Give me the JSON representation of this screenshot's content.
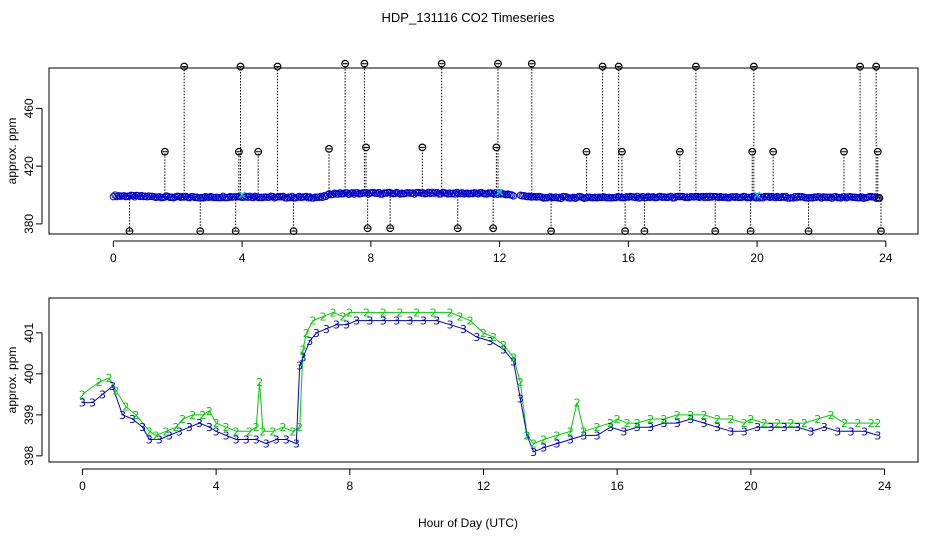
{
  "figure": {
    "title": "HDP_131116  CO2 Timeseries",
    "xlabel": "Hour of Day (UTC)"
  },
  "chart_data": [
    {
      "type": "scatter",
      "name": "top-panel",
      "title": "HDP_131116  CO2 Timeseries",
      "xlabel": "",
      "ylabel": "approx. ppm",
      "xlim": [
        -2.0,
        25.0
      ],
      "ylim": [
        373,
        488
      ],
      "xticks": [
        0,
        4,
        8,
        12,
        16,
        20,
        24
      ],
      "yticks": [
        380,
        420,
        460
      ],
      "colors": {
        "baseline": "#0000cc",
        "outlier": "#000000",
        "marker": "#00cccc"
      },
      "baseline": {
        "name": "baseline",
        "x": [
          0.0,
          1.0,
          2.0,
          3.0,
          4.0,
          5.0,
          6.0,
          6.5,
          6.8,
          8.0,
          10.0,
          12.0,
          12.6,
          13.3,
          13.5,
          16.0,
          20.0,
          23.8
        ],
        "y": [
          399.5,
          399.0,
          398.5,
          398.5,
          399.0,
          398.5,
          398.5,
          398.5,
          401.0,
          401.2,
          401.3,
          401.0,
          399.5,
          398.5,
          398.2,
          398.5,
          398.5,
          398.3
        ]
      },
      "outliers": {
        "name": "outliers",
        "x": [
          0.5,
          1.6,
          2.2,
          2.7,
          3.8,
          3.9,
          3.95,
          4.5,
          5.1,
          5.6,
          6.7,
          7.2,
          7.8,
          7.85,
          7.9,
          8.6,
          9.6,
          10.2,
          10.7,
          11.8,
          11.9,
          11.95,
          13.0,
          13.6,
          14.7,
          15.2,
          15.7,
          15.8,
          15.9,
          16.5,
          17.6,
          18.1,
          18.7,
          19.8,
          19.85,
          19.9,
          20.5,
          21.6,
          22.7,
          23.2,
          23.7,
          23.75,
          23.8,
          23.85
        ],
        "y": [
          375,
          430,
          489,
          375,
          375,
          430,
          489,
          430,
          489,
          375,
          432,
          491,
          491,
          433,
          377,
          377,
          433,
          491,
          377,
          377,
          433,
          491,
          491,
          375,
          430,
          489,
          489,
          430,
          375,
          375,
          430,
          489,
          375,
          375,
          430,
          489,
          430,
          375,
          430,
          489,
          489,
          430,
          398,
          375
        ]
      },
      "markers": {
        "name": "mean-markers",
        "x": [
          4.0,
          12.0,
          20.0
        ],
        "y": [
          400,
          402,
          400
        ]
      }
    },
    {
      "type": "scatter",
      "name": "bottom-panel",
      "xlabel": "Hour of Day (UTC)",
      "ylabel": "approx. ppm",
      "xlim": [
        -1.0,
        25.0
      ],
      "ylim": [
        397.85,
        401.85
      ],
      "xticks": [
        0,
        4,
        8,
        12,
        16,
        20,
        24
      ],
      "yticks": [
        398,
        399,
        400,
        401
      ],
      "colors": {
        "series2": "#00cc00",
        "series3": "#0000cc"
      },
      "series": [
        {
          "name": "2",
          "symbol": "2",
          "x": [
            0.0,
            0.5,
            0.8,
            1.0,
            1.3,
            1.6,
            2.0,
            2.2,
            2.5,
            2.8,
            3.0,
            3.3,
            3.6,
            3.8,
            4.0,
            4.3,
            4.6,
            5.0,
            5.2,
            5.3,
            5.4,
            5.7,
            6.0,
            6.3,
            6.5,
            6.6,
            6.7,
            6.9,
            7.2,
            7.5,
            7.8,
            8.0,
            8.5,
            9.0,
            9.5,
            10.0,
            10.5,
            11.0,
            11.3,
            11.6,
            12.0,
            12.3,
            12.6,
            12.9,
            13.1,
            13.3,
            13.5,
            13.8,
            14.2,
            14.6,
            14.8,
            15.0,
            15.4,
            15.8,
            16.0,
            16.3,
            16.6,
            17.0,
            17.4,
            17.8,
            18.2,
            18.6,
            19.0,
            19.4,
            19.8,
            20.0,
            20.4,
            20.8,
            21.2,
            21.6,
            22.0,
            22.4,
            22.8,
            23.2,
            23.6,
            23.8
          ],
          "y": [
            399.5,
            399.8,
            399.9,
            399.6,
            399.2,
            399.0,
            398.6,
            398.5,
            398.6,
            398.7,
            398.9,
            399.0,
            399.0,
            399.1,
            398.8,
            398.7,
            398.6,
            398.6,
            398.7,
            399.8,
            398.6,
            398.6,
            398.7,
            398.6,
            398.7,
            400.6,
            401.0,
            401.3,
            401.4,
            401.5,
            401.4,
            401.5,
            401.5,
            401.5,
            401.5,
            401.5,
            401.5,
            401.5,
            401.4,
            401.3,
            401.0,
            400.9,
            400.7,
            400.4,
            399.8,
            398.5,
            398.3,
            398.4,
            398.5,
            398.6,
            399.3,
            398.6,
            398.7,
            398.8,
            398.9,
            398.8,
            398.8,
            398.9,
            398.9,
            399.0,
            399.0,
            399.0,
            398.9,
            398.9,
            398.8,
            398.9,
            398.8,
            398.8,
            398.8,
            398.8,
            398.9,
            399.0,
            398.8,
            398.8,
            398.8,
            398.8
          ]
        },
        {
          "name": "3",
          "symbol": "3",
          "x": [
            0.0,
            0.3,
            0.6,
            0.9,
            1.2,
            1.5,
            1.8,
            2.0,
            2.3,
            2.6,
            2.9,
            3.2,
            3.5,
            3.8,
            4.0,
            4.3,
            4.6,
            4.9,
            5.2,
            5.5,
            5.8,
            6.1,
            6.4,
            6.5,
            6.6,
            6.8,
            7.0,
            7.3,
            7.6,
            7.9,
            8.2,
            8.6,
            9.0,
            9.4,
            9.8,
            10.2,
            10.6,
            11.0,
            11.4,
            11.8,
            12.2,
            12.6,
            12.9,
            13.1,
            13.3,
            13.5,
            13.8,
            14.2,
            14.6,
            15.0,
            15.4,
            15.8,
            16.2,
            16.6,
            17.0,
            17.4,
            17.8,
            18.2,
            18.6,
            19.0,
            19.4,
            19.8,
            20.2,
            20.6,
            21.0,
            21.4,
            21.8,
            22.2,
            22.6,
            23.0,
            23.4,
            23.8
          ],
          "y": [
            399.3,
            399.3,
            399.5,
            399.7,
            399.0,
            398.9,
            398.7,
            398.4,
            398.4,
            398.5,
            398.6,
            398.7,
            398.8,
            398.7,
            398.6,
            398.5,
            398.4,
            398.4,
            398.4,
            398.3,
            398.4,
            398.4,
            398.3,
            400.2,
            400.4,
            400.8,
            401.0,
            401.1,
            401.2,
            401.2,
            401.3,
            401.3,
            401.3,
            401.3,
            401.3,
            401.3,
            401.3,
            401.2,
            401.1,
            400.9,
            400.8,
            400.6,
            400.3,
            399.4,
            398.5,
            398.1,
            398.2,
            398.3,
            398.4,
            398.5,
            398.5,
            398.7,
            398.6,
            398.7,
            398.7,
            398.8,
            398.8,
            398.9,
            398.8,
            398.7,
            398.6,
            398.6,
            398.7,
            398.7,
            398.7,
            398.7,
            398.6,
            398.7,
            398.6,
            398.6,
            398.6,
            398.5
          ]
        }
      ]
    }
  ]
}
